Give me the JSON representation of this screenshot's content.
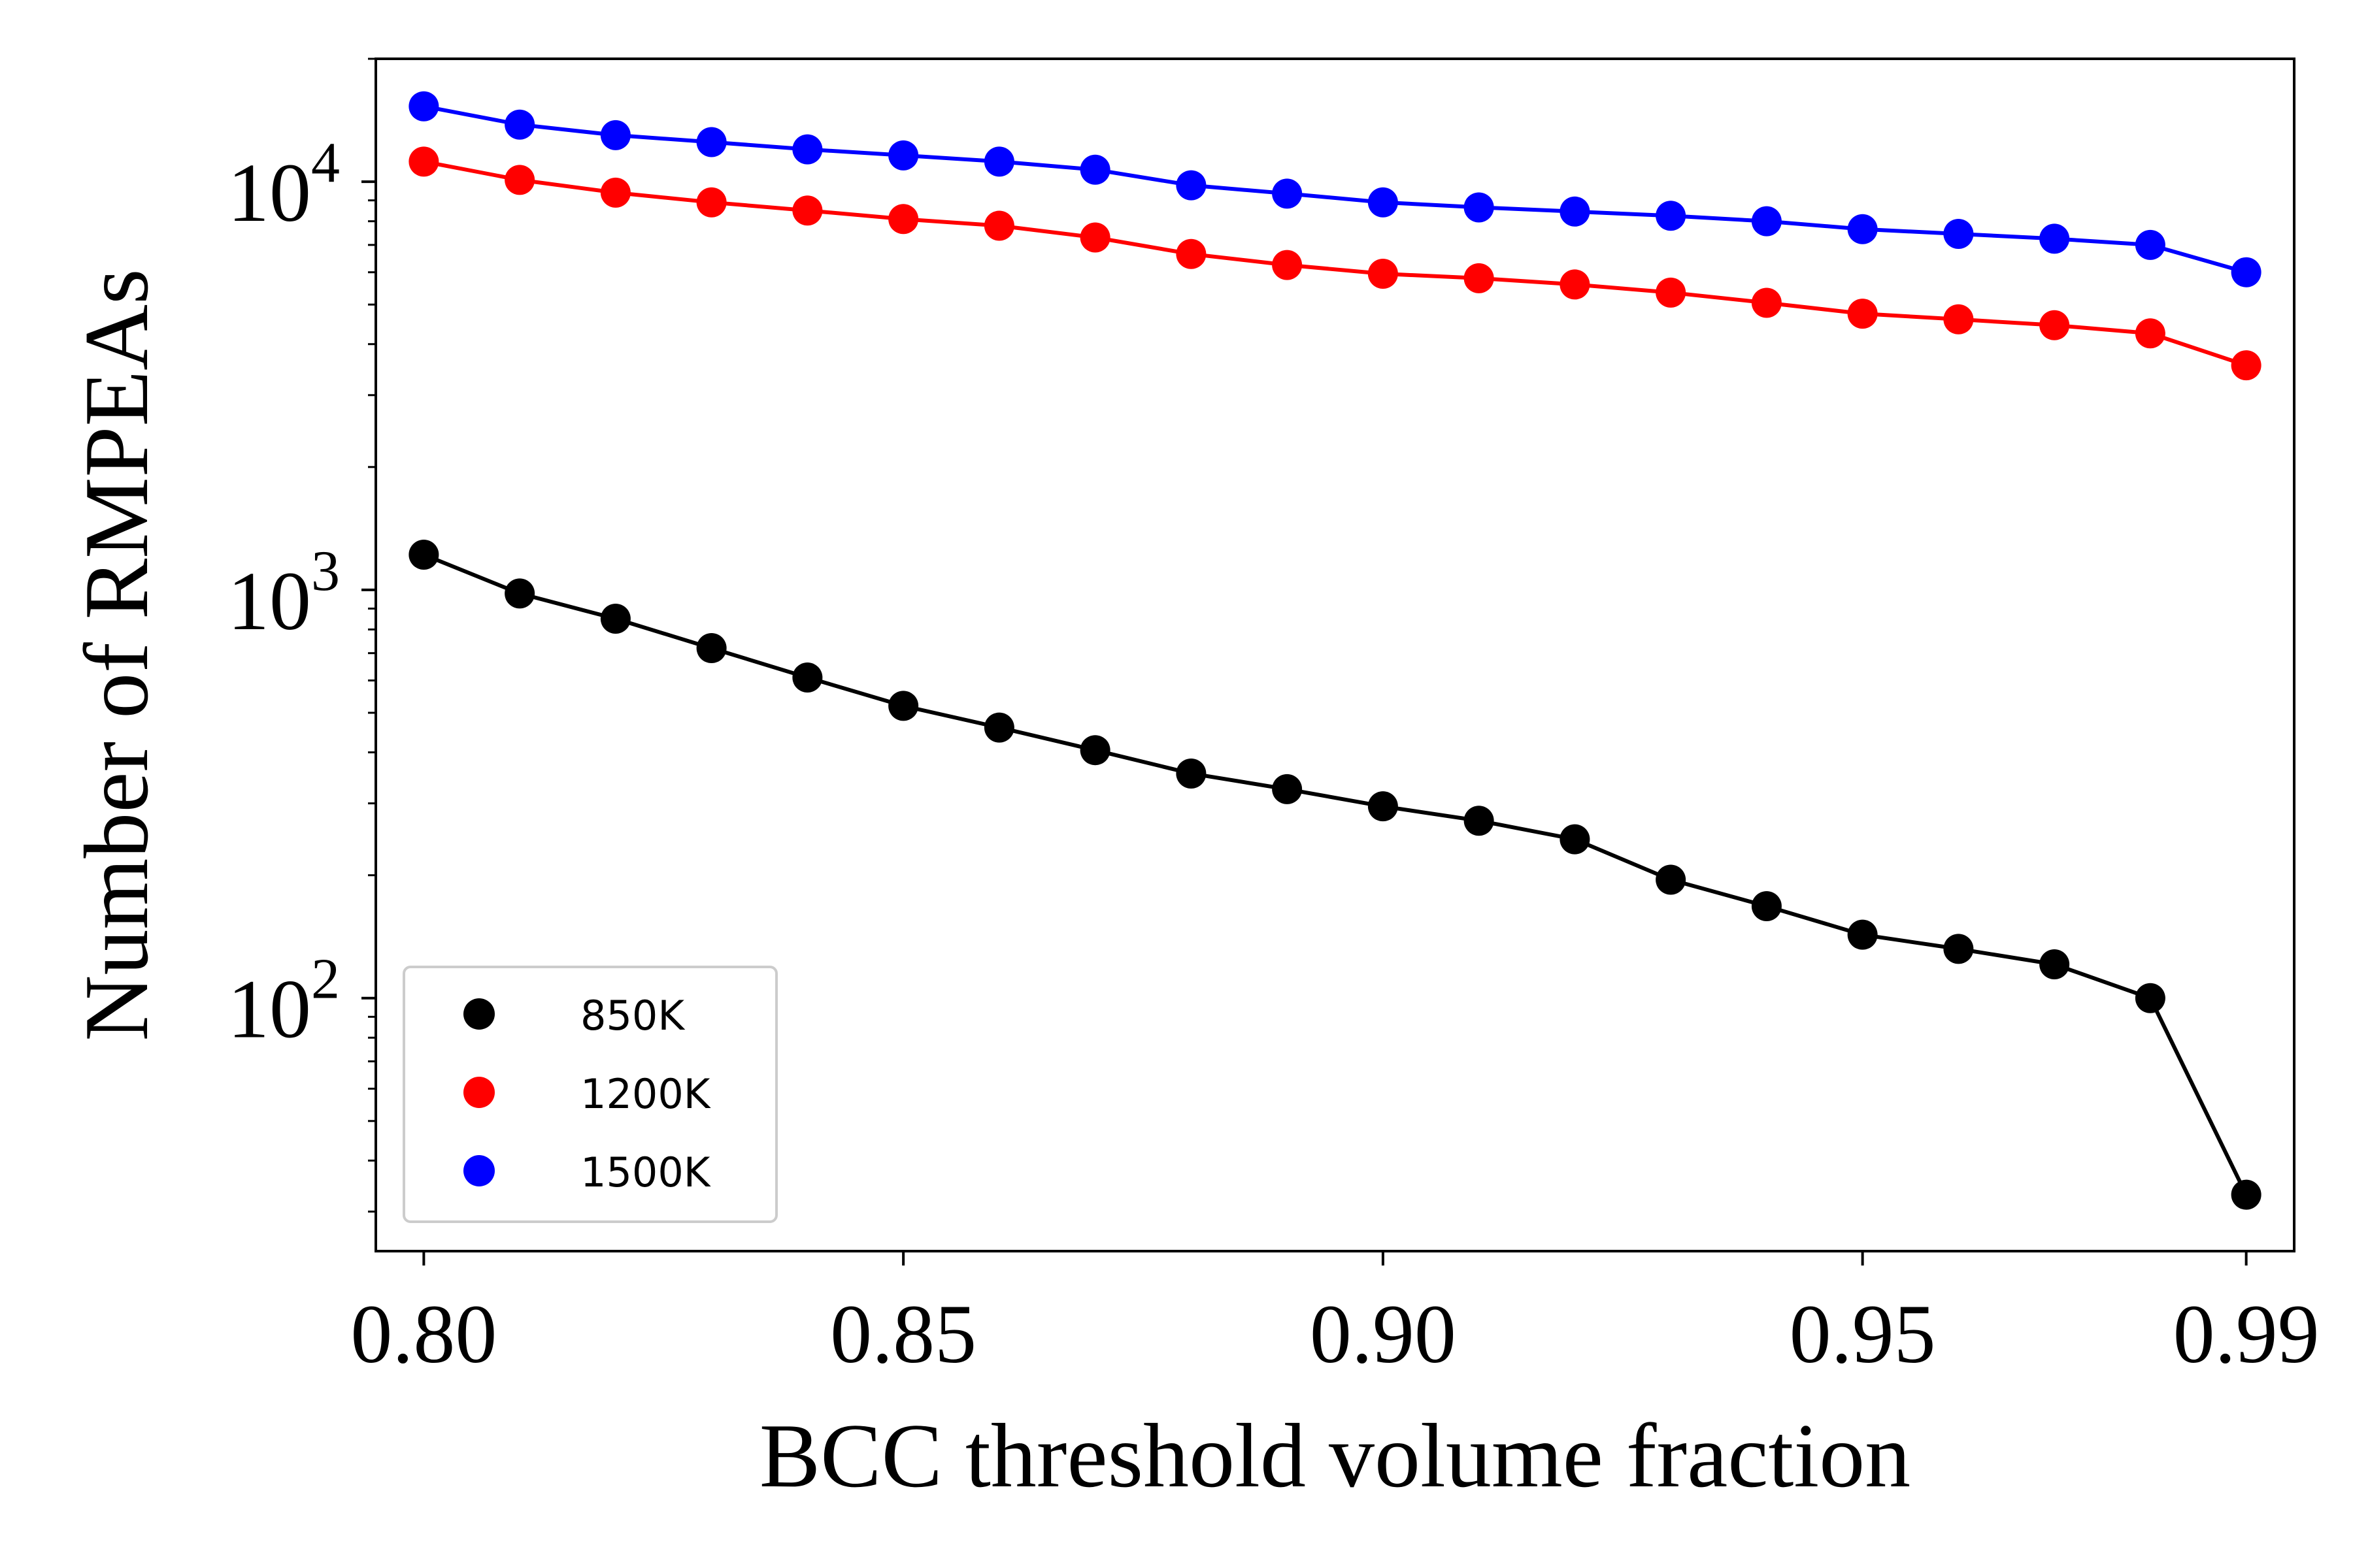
{
  "chart_data": {
    "type": "line",
    "title": "",
    "xlabel": "BCC threshold volume fraction",
    "ylabel": "Number of RMPEAs",
    "yscale": "log",
    "xlim": [
      0.795,
      0.995
    ],
    "ylim": [
      24,
      20000
    ],
    "x_ticks": [
      {
        "value": 0.8,
        "label": "0.80"
      },
      {
        "value": 0.85,
        "label": "0.85"
      },
      {
        "value": 0.9,
        "label": "0.90"
      },
      {
        "value": 0.95,
        "label": "0.95"
      },
      {
        "value": 0.99,
        "label": "0.99"
      }
    ],
    "y_ticks": [
      {
        "value": 100,
        "base": "10",
        "exp": "2"
      },
      {
        "value": 1000,
        "base": "10",
        "exp": "3"
      },
      {
        "value": 10000,
        "base": "10",
        "exp": "4"
      }
    ],
    "grid": false,
    "legend_position": "lower-left",
    "x": [
      0.8,
      0.81,
      0.82,
      0.83,
      0.84,
      0.85,
      0.86,
      0.87,
      0.88,
      0.89,
      0.9,
      0.91,
      0.92,
      0.93,
      0.94,
      0.95,
      0.96,
      0.97,
      0.98,
      0.99
    ],
    "series": [
      {
        "name": "850K",
        "color": "#000000",
        "marker": "circle",
        "values": [
          1220,
          980,
          850,
          720,
          610,
          520,
          460,
          405,
          355,
          325,
          295,
          272,
          245,
          195,
          168,
          143,
          132,
          121,
          100,
          33
        ]
      },
      {
        "name": "1200K",
        "color": "#ff0000",
        "marker": "circle",
        "values": [
          11200,
          10100,
          9400,
          8900,
          8500,
          8100,
          7800,
          7300,
          6650,
          6250,
          5950,
          5800,
          5600,
          5350,
          5050,
          4750,
          4600,
          4450,
          4250,
          3550
        ]
      },
      {
        "name": "1500K",
        "color": "#0000ff",
        "marker": "circle",
        "values": [
          15300,
          13800,
          13000,
          12500,
          12000,
          11600,
          11200,
          10700,
          9800,
          9350,
          8900,
          8650,
          8450,
          8250,
          8000,
          7650,
          7450,
          7250,
          7000,
          6000
        ]
      }
    ]
  }
}
